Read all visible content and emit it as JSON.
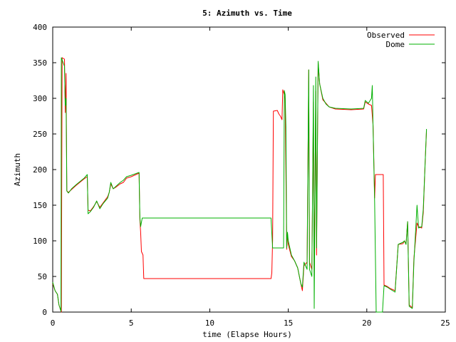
{
  "chart_data": {
    "type": "line",
    "title": "5: Azimuth vs. Time",
    "xlabel": "time (Elapse Hours)",
    "ylabel": "Azimuth",
    "xlim": [
      0,
      25
    ],
    "ylim": [
      0,
      400
    ],
    "xticks": [
      0,
      5,
      10,
      15,
      20,
      25
    ],
    "yticks": [
      0,
      50,
      100,
      150,
      200,
      250,
      300,
      350,
      400
    ],
    "grid": false,
    "legend_position": "top-right",
    "series": [
      {
        "name": "Observed",
        "color": "#ff0000",
        "points": [
          [
            0,
            40
          ],
          [
            0.15,
            30
          ],
          [
            0.3,
            25
          ],
          [
            0.4,
            10
          ],
          [
            0.5,
            3
          ],
          [
            0.55,
            0
          ],
          [
            0.6,
            357
          ],
          [
            0.75,
            355
          ],
          [
            0.8,
            280
          ],
          [
            0.85,
            335
          ],
          [
            0.9,
            170
          ],
          [
            1.0,
            168
          ],
          [
            1.2,
            172
          ],
          [
            1.5,
            178
          ],
          [
            2.0,
            187
          ],
          [
            2.2,
            190
          ],
          [
            2.25,
            143
          ],
          [
            2.4,
            142
          ],
          [
            2.6,
            148
          ],
          [
            2.8,
            155
          ],
          [
            3.0,
            147
          ],
          [
            3.2,
            153
          ],
          [
            3.5,
            162
          ],
          [
            3.6,
            168
          ],
          [
            3.7,
            180
          ],
          [
            3.85,
            173
          ],
          [
            4.0,
            175
          ],
          [
            4.3,
            180
          ],
          [
            4.5,
            182
          ],
          [
            4.7,
            188
          ],
          [
            5.0,
            190
          ],
          [
            5.5,
            195
          ],
          [
            5.55,
            130
          ],
          [
            5.6,
            112
          ],
          [
            5.65,
            85
          ],
          [
            5.75,
            80
          ],
          [
            5.8,
            47
          ],
          [
            13.9,
            47
          ],
          [
            13.95,
            55
          ],
          [
            14.0,
            100
          ],
          [
            14.05,
            282
          ],
          [
            14.3,
            283
          ],
          [
            14.4,
            278
          ],
          [
            14.5,
            275
          ],
          [
            14.6,
            270
          ],
          [
            14.65,
            312
          ],
          [
            14.75,
            305
          ],
          [
            14.8,
            300
          ],
          [
            14.9,
            88
          ],
          [
            14.95,
            110
          ],
          [
            15.0,
            95
          ],
          [
            15.2,
            78
          ],
          [
            15.4,
            72
          ],
          [
            15.6,
            62
          ],
          [
            15.8,
            40
          ],
          [
            15.9,
            30
          ],
          [
            16.0,
            65
          ],
          [
            16.2,
            70
          ],
          [
            16.3,
            340
          ],
          [
            16.35,
            70
          ],
          [
            16.5,
            60
          ],
          [
            16.6,
            295
          ],
          [
            16.65,
            45
          ],
          [
            16.75,
            310
          ],
          [
            16.8,
            80
          ],
          [
            16.9,
            350
          ],
          [
            17.0,
            320
          ],
          [
            17.2,
            298
          ],
          [
            17.4,
            293
          ],
          [
            17.6,
            288
          ],
          [
            18.0,
            285
          ],
          [
            19.0,
            284
          ],
          [
            19.8,
            285
          ],
          [
            19.9,
            295
          ],
          [
            20.1,
            292
          ],
          [
            20.3,
            290
          ],
          [
            20.4,
            262
          ],
          [
            20.5,
            160
          ],
          [
            20.55,
            193
          ],
          [
            21.05,
            193
          ],
          [
            21.1,
            38
          ],
          [
            21.3,
            36
          ],
          [
            21.5,
            33
          ],
          [
            21.8,
            30
          ],
          [
            22.0,
            95
          ],
          [
            22.3,
            96
          ],
          [
            22.4,
            100
          ],
          [
            22.5,
            95
          ],
          [
            22.6,
            127
          ],
          [
            22.7,
            10
          ],
          [
            22.9,
            6
          ],
          [
            23.0,
            75
          ],
          [
            23.2,
            125
          ],
          [
            23.3,
            120
          ],
          [
            23.5,
            118
          ],
          [
            23.6,
            140
          ],
          [
            23.7,
            200
          ],
          [
            23.8,
            255
          ]
        ]
      },
      {
        "name": "Dome",
        "color": "#00b000",
        "points": [
          [
            0,
            42
          ],
          [
            0.15,
            30
          ],
          [
            0.3,
            25
          ],
          [
            0.4,
            10
          ],
          [
            0.5,
            3
          ],
          [
            0.52,
            1
          ],
          [
            0.53,
            90
          ],
          [
            0.55,
            357
          ],
          [
            0.75,
            345
          ],
          [
            0.8,
            290
          ],
          [
            0.85,
            300
          ],
          [
            0.9,
            170
          ],
          [
            1.0,
            167
          ],
          [
            1.2,
            173
          ],
          [
            1.5,
            179
          ],
          [
            2.0,
            188
          ],
          [
            2.2,
            193
          ],
          [
            2.25,
            138
          ],
          [
            2.4,
            141
          ],
          [
            2.6,
            147
          ],
          [
            2.8,
            156
          ],
          [
            3.0,
            145
          ],
          [
            3.2,
            152
          ],
          [
            3.5,
            160
          ],
          [
            3.6,
            168
          ],
          [
            3.7,
            182
          ],
          [
            3.85,
            173
          ],
          [
            4.0,
            176
          ],
          [
            4.3,
            182
          ],
          [
            4.5,
            185
          ],
          [
            4.7,
            190
          ],
          [
            5.0,
            192
          ],
          [
            5.5,
            196
          ],
          [
            5.55,
            133
          ],
          [
            5.6,
            120
          ],
          [
            5.7,
            132
          ],
          [
            13.9,
            132
          ],
          [
            14.0,
            90
          ],
          [
            14.7,
            90
          ],
          [
            14.75,
            311
          ],
          [
            14.8,
            305
          ],
          [
            14.85,
            260
          ],
          [
            14.9,
            90
          ],
          [
            14.95,
            112
          ],
          [
            15.0,
            100
          ],
          [
            15.2,
            80
          ],
          [
            15.4,
            72
          ],
          [
            15.6,
            62
          ],
          [
            15.8,
            40
          ],
          [
            15.9,
            35
          ],
          [
            16.0,
            70
          ],
          [
            16.2,
            60
          ],
          [
            16.3,
            340
          ],
          [
            16.35,
            60
          ],
          [
            16.5,
            50
          ],
          [
            16.6,
            318
          ],
          [
            16.65,
            5
          ],
          [
            16.75,
            330
          ],
          [
            16.8,
            90
          ],
          [
            16.9,
            352
          ],
          [
            17.0,
            320
          ],
          [
            17.2,
            300
          ],
          [
            17.4,
            292
          ],
          [
            17.6,
            288
          ],
          [
            18.0,
            286
          ],
          [
            19.0,
            285
          ],
          [
            19.8,
            286
          ],
          [
            19.9,
            297
          ],
          [
            20.1,
            293
          ],
          [
            20.3,
            300
          ],
          [
            20.35,
            318
          ],
          [
            20.4,
            260
          ],
          [
            20.5,
            155
          ],
          [
            20.6,
            0
          ],
          [
            21.0,
            0
          ],
          [
            21.1,
            37
          ],
          [
            21.3,
            35
          ],
          [
            21.5,
            32
          ],
          [
            21.8,
            28
          ],
          [
            22.0,
            95
          ],
          [
            22.3,
            98
          ],
          [
            22.4,
            100
          ],
          [
            22.5,
            95
          ],
          [
            22.6,
            127
          ],
          [
            22.7,
            8
          ],
          [
            22.9,
            5
          ],
          [
            23.0,
            70
          ],
          [
            23.2,
            150
          ],
          [
            23.3,
            118
          ],
          [
            23.5,
            120
          ],
          [
            23.6,
            145
          ],
          [
            23.7,
            200
          ],
          [
            23.8,
            257
          ]
        ]
      }
    ]
  }
}
